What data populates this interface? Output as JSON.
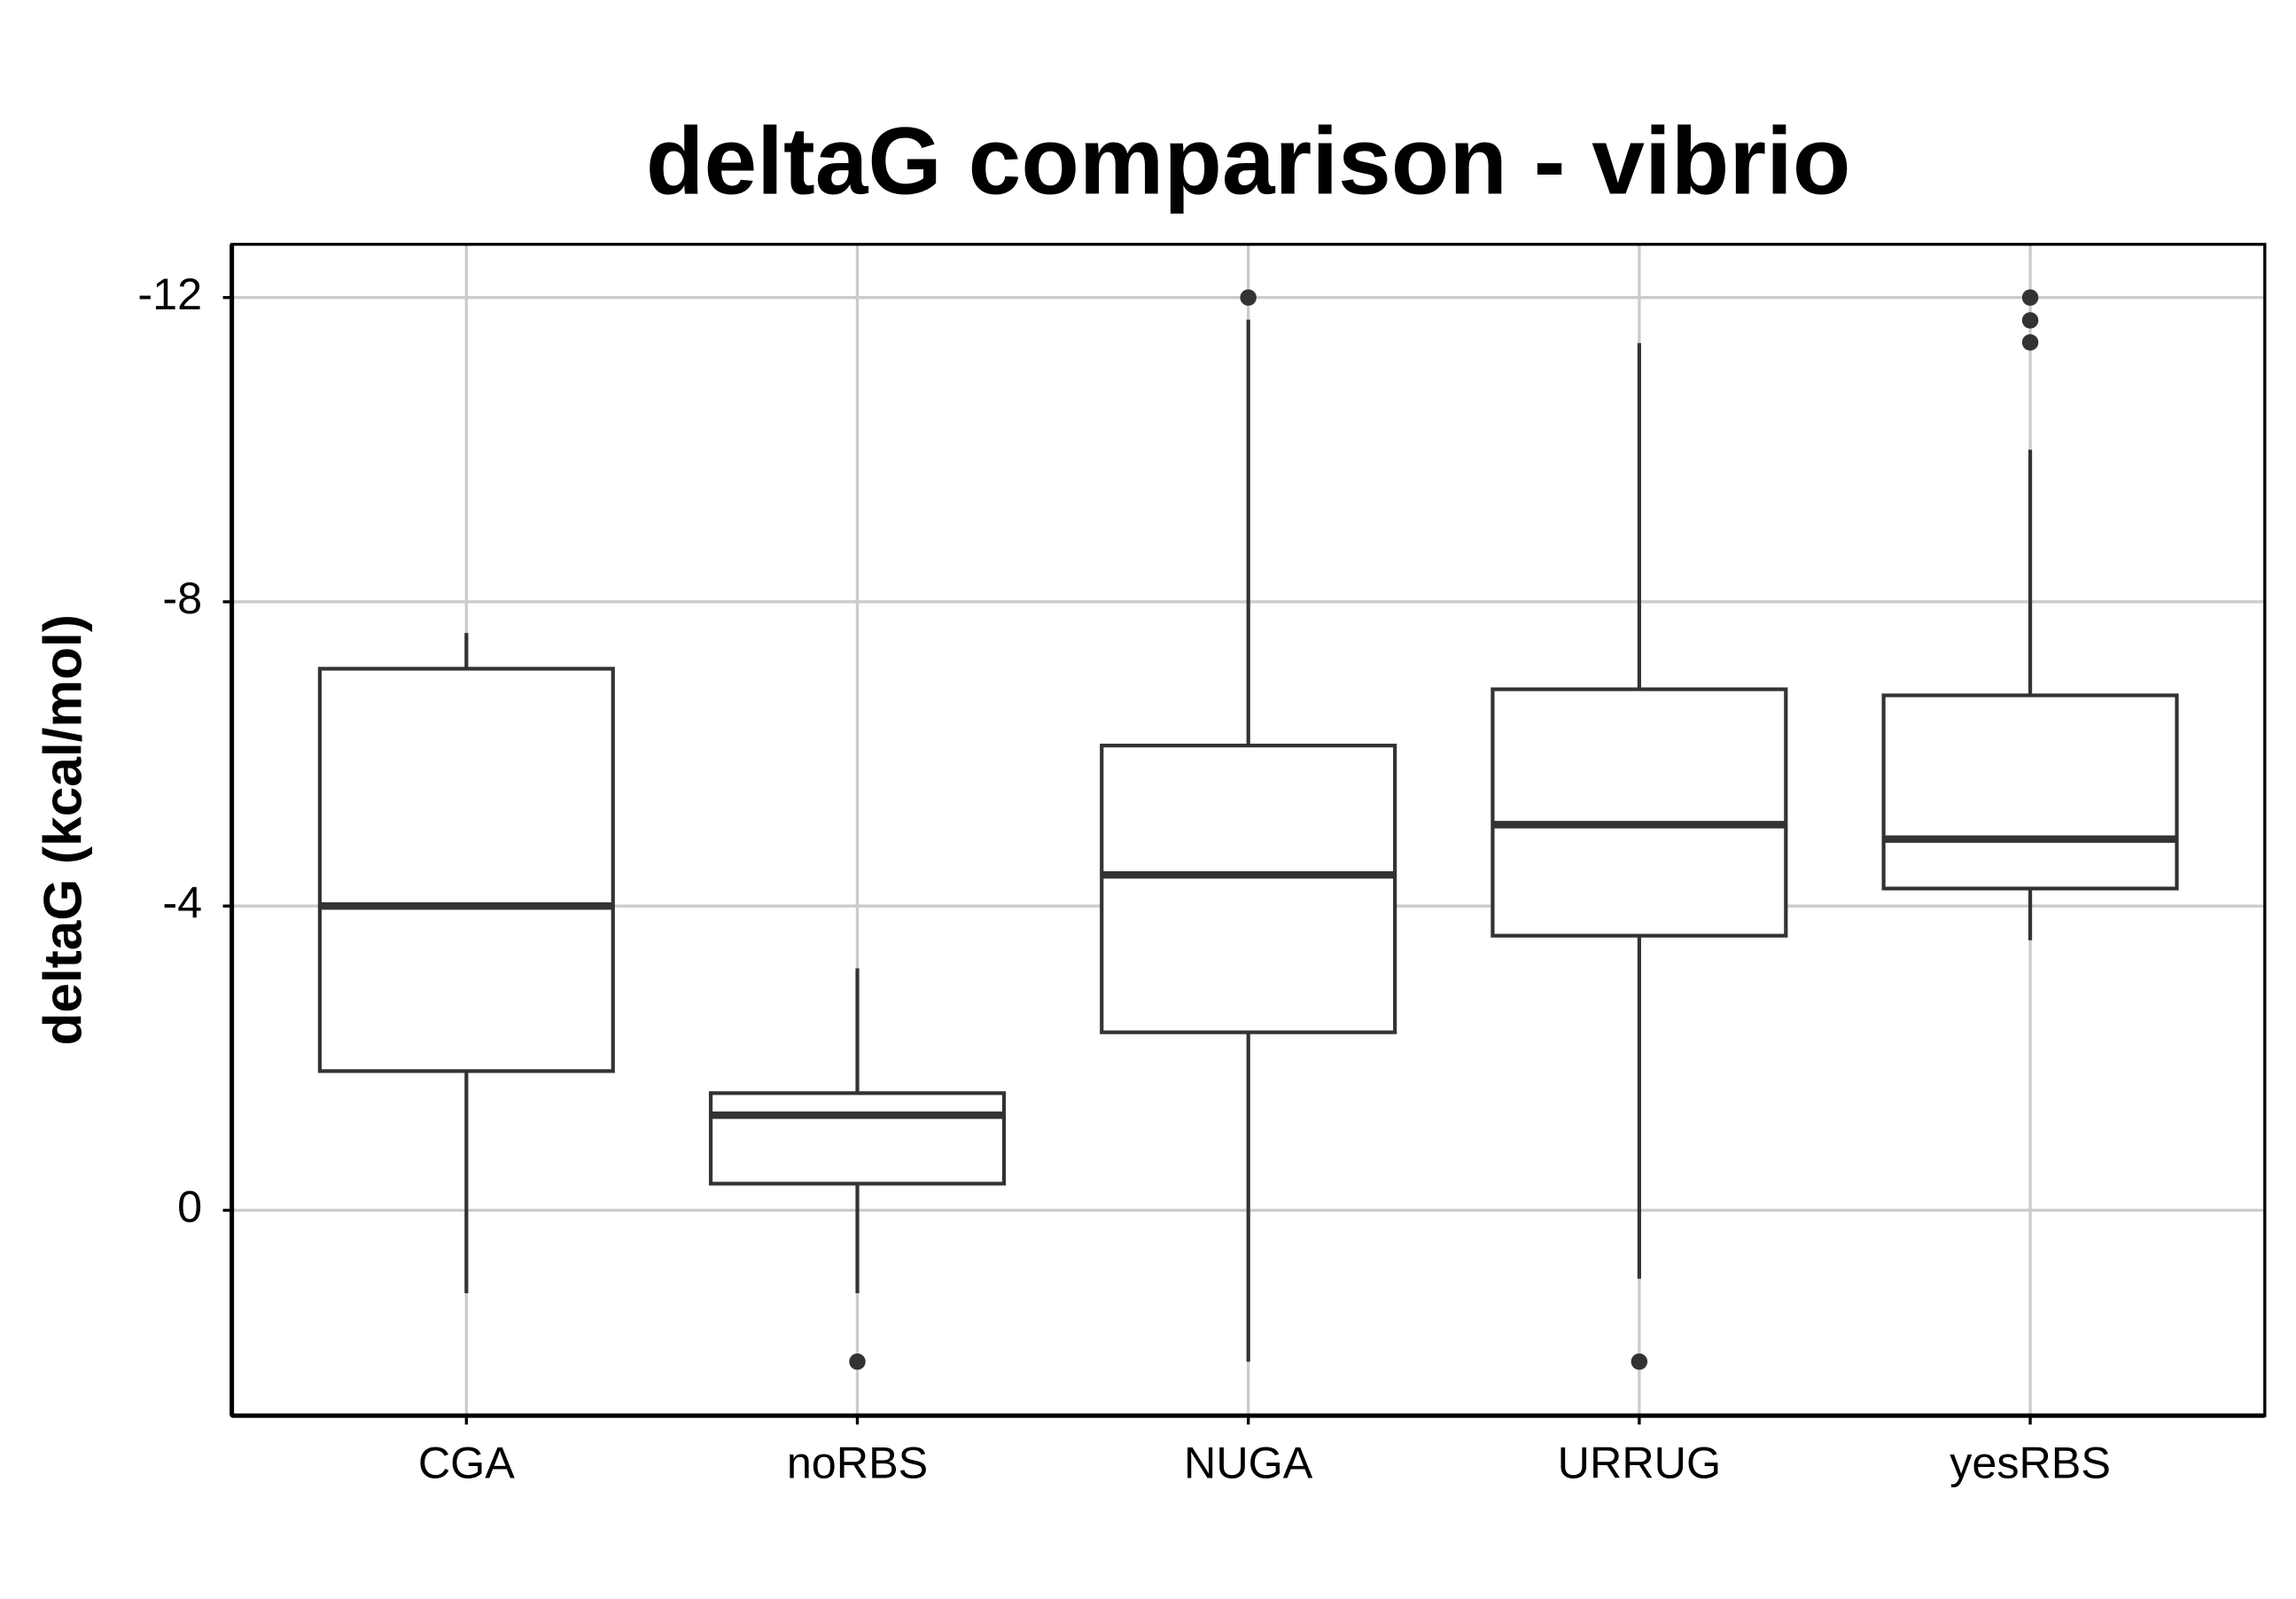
{
  "chart_data": {
    "type": "box",
    "title": "deltaG comparison - vibrio",
    "y_label": "deltaG (kcal/mol)",
    "categories": [
      "CGA",
      "noRBS",
      "NUGA",
      "URRUG",
      "yesRBS"
    ],
    "whisker_high": [
      -7.59,
      -3.18,
      -11.71,
      -11.4,
      -10.0
    ],
    "q3": [
      -7.12,
      -1.54,
      -6.11,
      -6.85,
      -6.77
    ],
    "median": [
      -4.0,
      -1.25,
      -4.41,
      -5.07,
      -4.88
    ],
    "q1": [
      -1.83,
      -0.35,
      -2.34,
      -3.61,
      -4.23
    ],
    "whisker_low": [
      1.09,
      1.09,
      1.99,
      0.9,
      -3.55
    ],
    "outliers": [
      [],
      [
        1.99
      ],
      [
        -12.0
      ],
      [
        1.99
      ],
      [
        -12.0,
        -11.7,
        -11.41
      ]
    ],
    "box_color": "#333333",
    "ylim": [
      2.7,
      -12.7
    ],
    "yticks": [
      -12,
      -8,
      -4,
      0
    ],
    "grid": true
  }
}
